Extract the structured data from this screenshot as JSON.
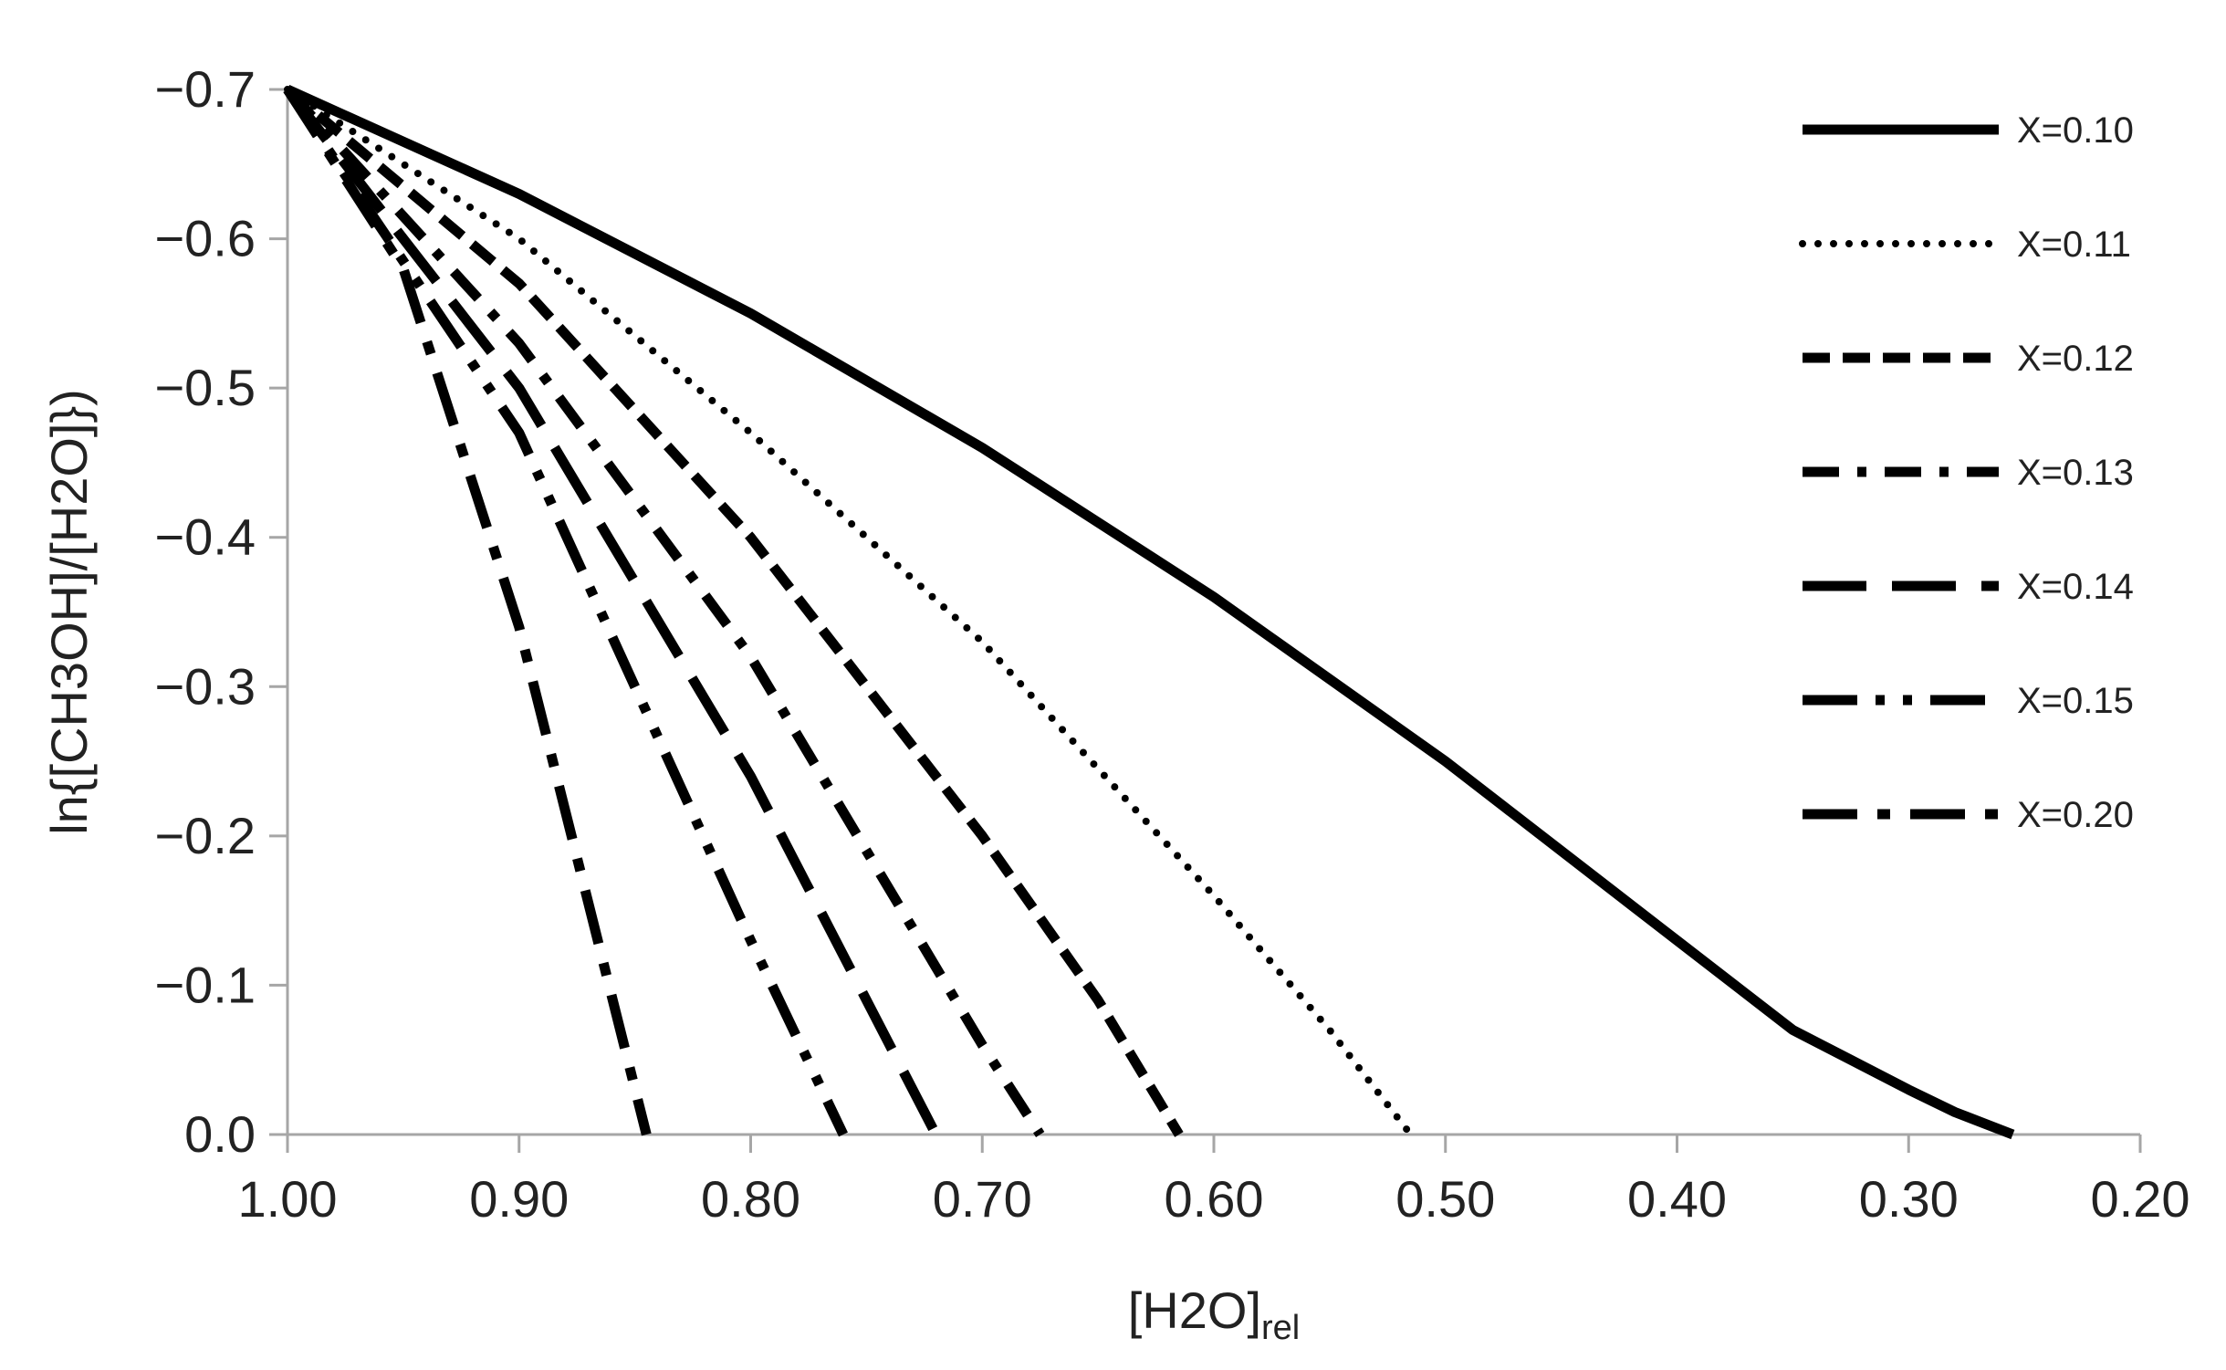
{
  "chart_data": {
    "type": "line",
    "title": "",
    "xlabel": "[H2O]",
    "xlabel_subscript": "rel",
    "ylabel": "ln{[CH3OH]/[H2O]})",
    "xlim": [
      1.0,
      0.2
    ],
    "x_reversed": true,
    "ylim": [
      0.0,
      -0.7
    ],
    "y_reversed": true,
    "x_ticks": [
      "1.00",
      "0.90",
      "0.80",
      "0.70",
      "0.60",
      "0.50",
      "0.40",
      "0.30",
      "0.20"
    ],
    "y_ticks": [
      "−0.7",
      "−0.6",
      "−0.5",
      "−0.4",
      "−0.3",
      "−0.2",
      "−0.1",
      "0.0"
    ],
    "grid": false,
    "legend_position": "right",
    "line_color": "#000000",
    "series": [
      {
        "name": "X=0.10",
        "dash": "solid",
        "x": [
          1.0,
          0.9,
          0.8,
          0.7,
          0.6,
          0.5,
          0.4,
          0.35,
          0.3,
          0.28,
          0.255
        ],
        "y": [
          -0.7,
          -0.63,
          -0.55,
          -0.46,
          -0.36,
          -0.25,
          -0.13,
          -0.07,
          -0.03,
          -0.015,
          0.0
        ]
      },
      {
        "name": "X=0.11",
        "dash": "dotted",
        "x": [
          1.0,
          0.9,
          0.8,
          0.7,
          0.6,
          0.55,
          0.515
        ],
        "y": [
          -0.7,
          -0.6,
          -0.47,
          -0.33,
          -0.16,
          -0.07,
          0.0
        ]
      },
      {
        "name": "X=0.12",
        "dash": "dashed",
        "x": [
          1.0,
          0.9,
          0.8,
          0.7,
          0.65,
          0.615
        ],
        "y": [
          -0.7,
          -0.57,
          -0.4,
          -0.2,
          -0.09,
          0.0
        ]
      },
      {
        "name": "X=0.13",
        "dash": "dash-dot",
        "x": [
          1.0,
          0.9,
          0.8,
          0.7,
          0.675
        ],
        "y": [
          -0.7,
          -0.53,
          -0.32,
          -0.06,
          0.0
        ]
      },
      {
        "name": "X=0.14",
        "dash": "long-dash",
        "x": [
          1.0,
          0.9,
          0.8,
          0.72
        ],
        "y": [
          -0.7,
          -0.5,
          -0.24,
          0.0
        ]
      },
      {
        "name": "X=0.15",
        "dash": "long-dash-dot-dot",
        "x": [
          1.0,
          0.9,
          0.8,
          0.76
        ],
        "y": [
          -0.7,
          -0.47,
          -0.13,
          0.0
        ]
      },
      {
        "name": "X=0.20",
        "dash": "long-dash-dot",
        "x": [
          1.0,
          0.95,
          0.9,
          0.845
        ],
        "y": [
          -0.7,
          -0.58,
          -0.34,
          0.0
        ]
      }
    ]
  }
}
